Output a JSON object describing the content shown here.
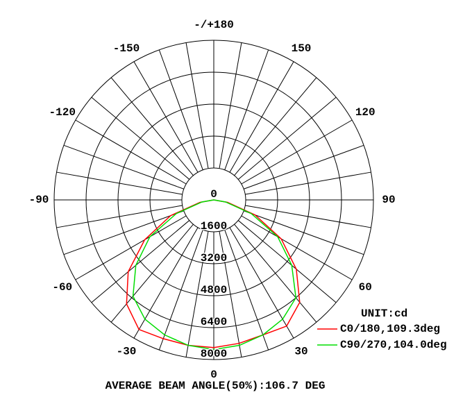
{
  "chart_data": {
    "type": "polar",
    "unit": "UNIT:cd",
    "footer": "AVERAGE BEAM ANGLE(50%):106.7 DEG",
    "rlim": [
      0,
      8000
    ],
    "rticks": [
      0,
      1600,
      3200,
      4800,
      6400,
      8000
    ],
    "angle_ticks": [
      0,
      30,
      60,
      90,
      120,
      150,
      {
        "value": 180,
        "label": "-/+180"
      },
      -150,
      -120,
      -90,
      -60,
      -30
    ],
    "theta": [
      -90,
      -80,
      -70,
      -60,
      -50,
      -40,
      -30,
      -20,
      -10,
      0,
      10,
      20,
      30,
      40,
      50,
      60,
      70,
      80,
      90
    ],
    "series": [
      {
        "name": "C0/180,109.3deg",
        "color": "#ff0000",
        "values": [
          0,
          700,
          2300,
          4000,
          5600,
          6800,
          7500,
          7400,
          7400,
          7400,
          7300,
          7200,
          7300,
          6700,
          5400,
          3900,
          2200,
          700,
          0
        ]
      },
      {
        "name": "C90/270,104.0deg",
        "color": "#00dd00",
        "values": [
          0,
          600,
          2000,
          3700,
          5100,
          6300,
          6900,
          7200,
          7400,
          7500,
          7400,
          7200,
          6900,
          6400,
          5100,
          3700,
          2000,
          600,
          0
        ]
      }
    ]
  }
}
